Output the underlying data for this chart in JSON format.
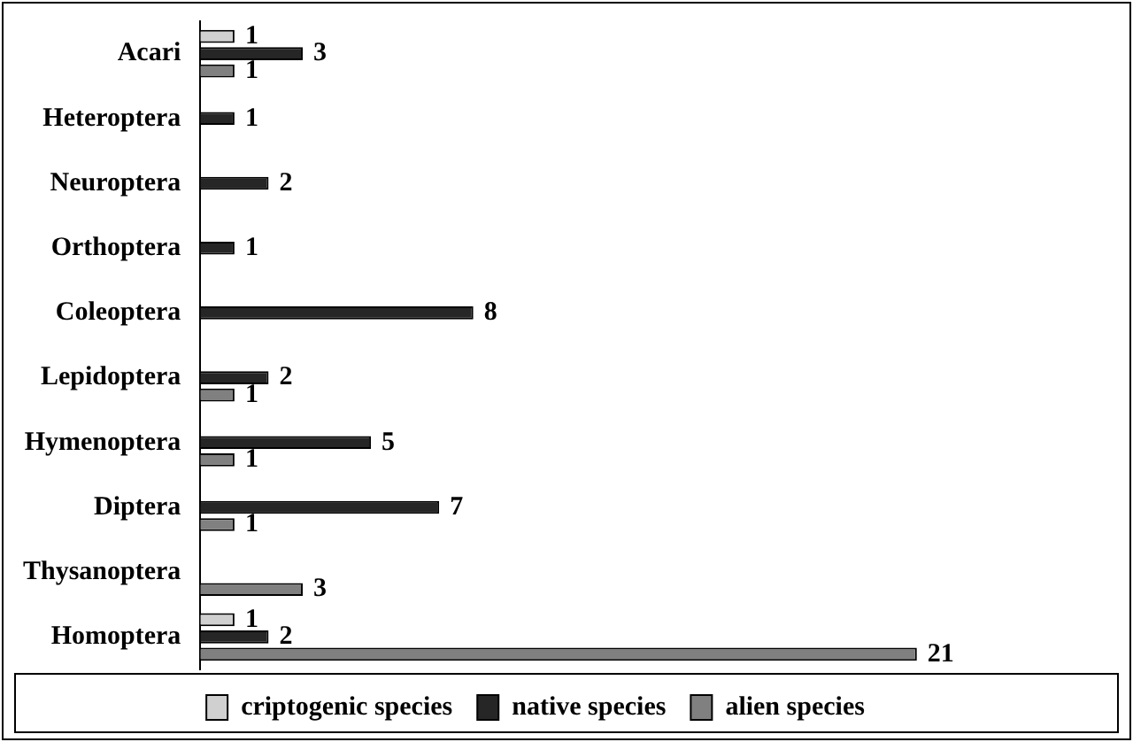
{
  "chart_data": {
    "type": "bar",
    "orientation": "horizontal",
    "categories": [
      "Acari",
      "Heteroptera",
      "Neuroptera",
      "Orthoptera",
      "Coleoptera",
      "Lepidoptera",
      "Hymenoptera",
      "Diptera",
      "Thysanoptera",
      "Homoptera"
    ],
    "series": [
      {
        "name": "criptogenic species",
        "color": "#d0d0d0",
        "values": [
          1,
          null,
          null,
          null,
          null,
          null,
          null,
          null,
          null,
          1
        ]
      },
      {
        "name": "native species",
        "color": "#262626",
        "values": [
          3,
          1,
          2,
          1,
          8,
          2,
          5,
          7,
          null,
          2
        ]
      },
      {
        "name": "alien species",
        "color": "#808080",
        "values": [
          1,
          null,
          null,
          null,
          null,
          1,
          1,
          1,
          3,
          21
        ]
      }
    ],
    "data_labels": true,
    "legend": "bottom"
  }
}
